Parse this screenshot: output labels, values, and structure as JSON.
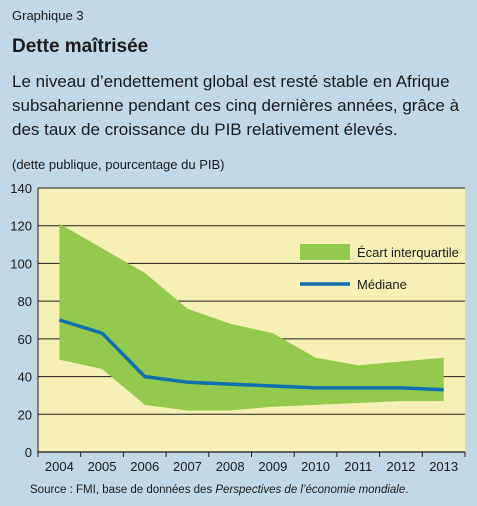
{
  "header": {
    "label": "Graphique 3",
    "title": "Dette maîtrisée",
    "subtitle": "Le niveau d’endettement global est resté stable en Afrique subsaharienne pendant ces cinq dernières années, grâce à des taux de croissance du PIB relativement élevés.",
    "unit": "(dette publique, pourcentage du PIB)"
  },
  "source": {
    "prefix": "Source : FMI, base de données des ",
    "italic": "Perspectives de l’économie mondiale",
    "suffix": "."
  },
  "colors": {
    "background": "#c3d8e6",
    "plot_background": "#f7f0b6",
    "band": "#93c94d",
    "median": "#0f6fb0",
    "grid": "#1a1a1a"
  },
  "chart_data": {
    "type": "area",
    "x": [
      "2004",
      "2005",
      "2006",
      "2007",
      "2008",
      "2009",
      "2010",
      "2011",
      "2012",
      "2013"
    ],
    "ylim": [
      0,
      140
    ],
    "yticks": [
      0,
      20,
      40,
      60,
      80,
      100,
      120,
      140
    ],
    "grid": true,
    "legend_position": "top-right",
    "series": [
      {
        "name": "Écart interquartile",
        "kind": "band",
        "upper": [
          121,
          108,
          95,
          76,
          68,
          63,
          50,
          46,
          48,
          50
        ],
        "lower": [
          49,
          44,
          25,
          22,
          22,
          24,
          25,
          26,
          27,
          27
        ]
      },
      {
        "name": "Médiane",
        "kind": "line",
        "values": [
          70,
          63,
          40,
          37,
          36,
          35,
          34,
          34,
          34,
          33
        ]
      }
    ]
  }
}
